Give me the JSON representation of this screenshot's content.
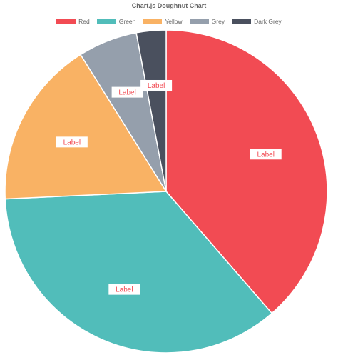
{
  "chart_data": {
    "type": "pie",
    "title": "Chart.js Doughnut Chart",
    "legend_position": "top",
    "categories": [
      "Red",
      "Green",
      "Yellow",
      "Grey",
      "Dark Grey"
    ],
    "values": [
      39,
      36,
      17,
      6,
      3
    ],
    "colors": [
      "#f24b53",
      "#51bdba",
      "#f9b264",
      "#959fac",
      "#4a505e"
    ],
    "slice_labels": [
      "Label",
      "Label",
      "Label",
      "Label",
      "Label"
    ]
  }
}
